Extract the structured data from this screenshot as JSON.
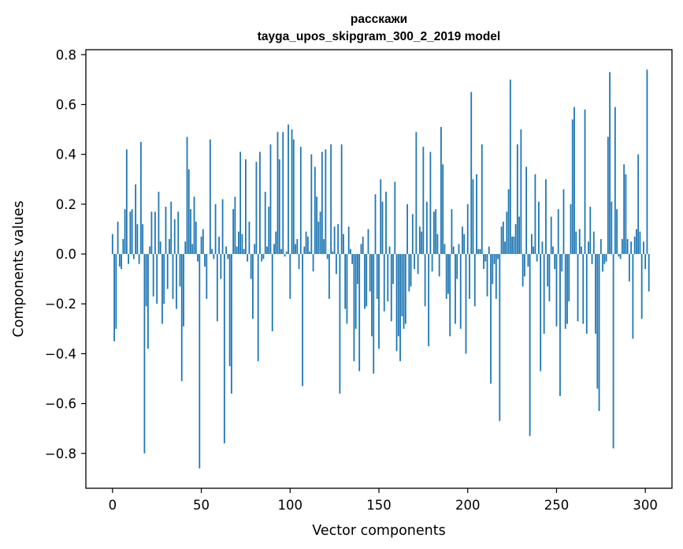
{
  "chart_data": {
    "type": "bar",
    "title": "расскажи",
    "subtitle": "tayga_upos_skipgram_300_2_2019 model",
    "xlabel": "Vector components",
    "ylabel": "Components values",
    "xlim": [
      -15,
      315
    ],
    "ylim": [
      -0.94,
      0.82
    ],
    "xticks": [
      0,
      50,
      100,
      150,
      200,
      250,
      300
    ],
    "yticks": [
      -0.8,
      -0.6,
      -0.4,
      -0.2,
      0.0,
      0.2,
      0.4,
      0.6,
      0.8
    ],
    "ytick_labels": [
      "−0.8",
      "−0.6",
      "−0.4",
      "−0.2",
      "0.0",
      "0.2",
      "0.4",
      "0.6",
      "0.8"
    ],
    "bar_color": "#1f77b4",
    "values": [
      0.08,
      -0.35,
      -0.3,
      0.13,
      -0.05,
      -0.06,
      0.06,
      0.18,
      0.42,
      -0.04,
      0.17,
      0.18,
      -0.02,
      0.28,
      0.12,
      -0.04,
      0.45,
      0.12,
      -0.8,
      -0.21,
      -0.38,
      0.03,
      0.17,
      -0.17,
      0.17,
      -0.2,
      0.25,
      0.05,
      -0.28,
      -0.2,
      0.19,
      -0.14,
      0.06,
      0.21,
      -0.18,
      0.14,
      -0.22,
      0.17,
      -0.13,
      -0.51,
      -0.29,
      0.05,
      0.47,
      0.34,
      0.18,
      0.04,
      0.23,
      0.13,
      -0.03,
      -0.86,
      0.07,
      0.1,
      -0.05,
      -0.18,
      0.0,
      0.46,
      0.02,
      -0.02,
      0.2,
      -0.27,
      0.07,
      -0.1,
      0.22,
      -0.76,
      0.03,
      -0.02,
      -0.45,
      -0.56,
      0.18,
      0.23,
      0.03,
      0.09,
      0.41,
      0.08,
      0.02,
      0.38,
      -0.03,
      0.13,
      -0.1,
      -0.26,
      0.04,
      0.37,
      -0.43,
      0.41,
      -0.03,
      -0.02,
      0.25,
      0.03,
      0.19,
      0.44,
      -0.31,
      0.04,
      0.09,
      0.49,
      0.38,
      0.02,
      0.49,
      -0.01,
      0.01,
      0.52,
      -0.18,
      0.5,
      0.46,
      0.04,
      0.06,
      -0.06,
      0.43,
      -0.53,
      0.03,
      0.09,
      0.07,
      0.01,
      0.4,
      -0.07,
      0.35,
      0.23,
      0.13,
      0.17,
      0.41,
      0.06,
      0.42,
      -0.02,
      -0.18,
      0.44,
      0.01,
      0.11,
      -0.08,
      0.12,
      -0.56,
      0.44,
      0.08,
      -0.22,
      -0.28,
      0.11,
      0.02,
      -0.04,
      -0.43,
      -0.3,
      -0.12,
      -0.47,
      0.04,
      0.07,
      -0.22,
      -0.21,
      0.1,
      -0.15,
      -0.33,
      -0.48,
      0.24,
      -0.18,
      -0.38,
      0.3,
      0.21,
      -0.23,
      0.25,
      -0.19,
      0.03,
      -0.27,
      -0.12,
      0.29,
      -0.39,
      -0.33,
      -0.43,
      -0.25,
      -0.3,
      -0.28,
      0.2,
      -0.15,
      -0.13,
      0.16,
      -0.06,
      0.49,
      -0.08,
      0.11,
      0.09,
      0.43,
      -0.21,
      0.21,
      -0.37,
      0.41,
      -0.07,
      0.17,
      0.18,
      0.08,
      -0.09,
      0.51,
      0.36,
      0.04,
      -0.18,
      -0.16,
      -0.33,
      0.18,
      0.03,
      -0.28,
      -0.1,
      0.04,
      -0.3,
      0.11,
      0.08,
      -0.4,
      0.2,
      -0.18,
      0.65,
      0.3,
      -0.21,
      0.32,
      0.02,
      0.02,
      0.44,
      -0.06,
      -0.03,
      -0.17,
      0.03,
      -0.52,
      -0.12,
      -0.04,
      -0.18,
      -0.02,
      -0.67,
      0.11,
      0.13,
      0.05,
      0.17,
      0.26,
      0.7,
      0.07,
      0.07,
      0.12,
      0.44,
      0.15,
      0.5,
      -0.13,
      -0.09,
      0.35,
      -0.05,
      -0.73,
      0.08,
      0.03,
      0.32,
      -0.03,
      0.21,
      -0.47,
      0.05,
      -0.32,
      0.3,
      -0.13,
      -0.19,
      0.15,
      0.03,
      -0.06,
      -0.29,
      0.18,
      -0.57,
      -0.07,
      0.26,
      -0.3,
      -0.28,
      -0.19,
      0.2,
      0.54,
      0.59,
      0.09,
      -0.27,
      0.1,
      0.03,
      -0.28,
      0.58,
      -0.32,
      0.05,
      0.19,
      -0.04,
      0.09,
      -0.32,
      -0.54,
      -0.63,
      0.06,
      -0.07,
      -0.04,
      -0.03,
      0.47,
      0.73,
      0.21,
      -0.78,
      0.59,
      0.18,
      -0.01,
      -0.02,
      0.06,
      0.36,
      0.32,
      0.06,
      -0.11,
      0.05,
      -0.34,
      0.07,
      0.1,
      0.4,
      0.09,
      -0.26,
      0.05,
      -0.06,
      0.74,
      -0.15
    ]
  }
}
